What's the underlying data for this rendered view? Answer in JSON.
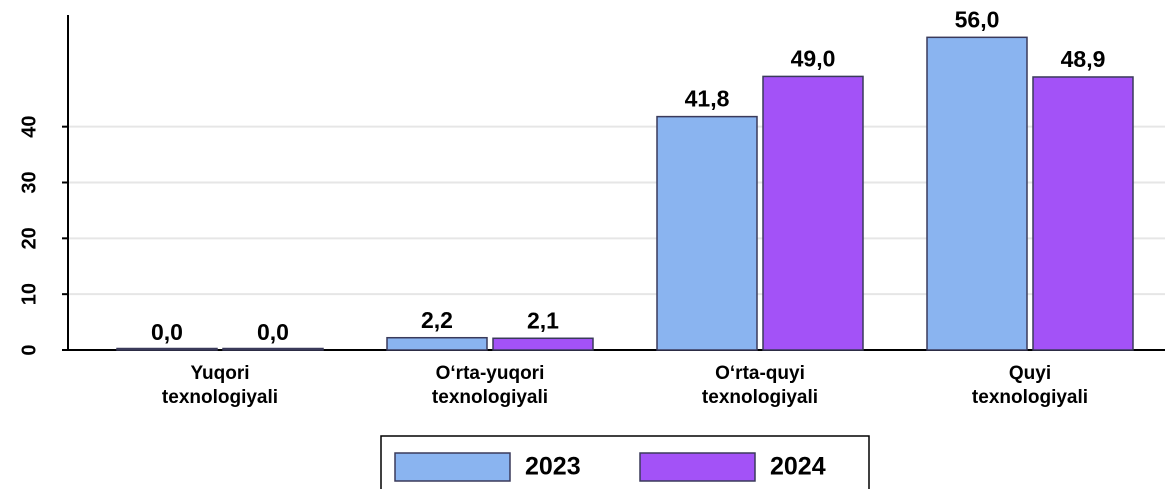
{
  "chart_data": {
    "type": "bar",
    "categories": [
      "Yuqori\ntexnologiyali",
      "O‘rta-yuqori\ntexnologiyali",
      "O‘rta-quyi\ntexnologiyali",
      "Quyi\ntexnologiyali"
    ],
    "series": [
      {
        "name": "2023",
        "color": "#8ab4f0",
        "values": [
          0.0,
          2.2,
          41.8,
          56.0
        ],
        "value_labels": [
          "0,0",
          "2,2",
          "41,8",
          "56,0"
        ]
      },
      {
        "name": "2024",
        "color": "#a352f7",
        "values": [
          0.0,
          2.1,
          49.0,
          48.9
        ],
        "value_labels": [
          "0,0",
          "2,1",
          "49,0",
          "48,9"
        ]
      }
    ],
    "ylim": [
      0,
      60
    ],
    "yticks": [
      0,
      10,
      20,
      30,
      40
    ],
    "grid": true,
    "legend": "bottom"
  }
}
